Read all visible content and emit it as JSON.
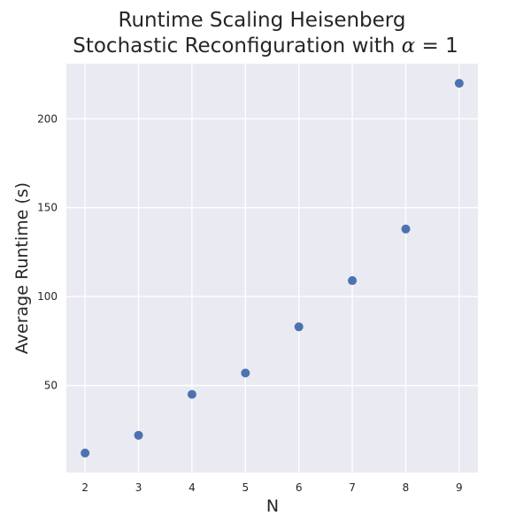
{
  "chart_data": {
    "type": "scatter",
    "title_line1": "Runtime Scaling Heisenberg",
    "title_line2_text": "Stochastic Reconfiguration with ",
    "title_line2_math_symbol": "α",
    "title_line2_math_rest": " = 1",
    "xlabel": "N",
    "ylabel": "Average Runtime (s)",
    "x": [
      2,
      3,
      4,
      5,
      6,
      7,
      8,
      9
    ],
    "y": [
      12,
      22,
      45,
      57,
      83,
      109,
      138,
      220
    ],
    "xticks": [
      2,
      3,
      4,
      5,
      6,
      7,
      8,
      9
    ],
    "yticks": [
      50,
      100,
      150,
      200
    ],
    "xlim": [
      1.65,
      9.35
    ],
    "ylim": [
      1,
      231
    ],
    "grid": true,
    "colors": {
      "background": "#eaeaf2",
      "grid": "#ffffff",
      "marker": "#4c72b0",
      "text": "#262626"
    }
  }
}
